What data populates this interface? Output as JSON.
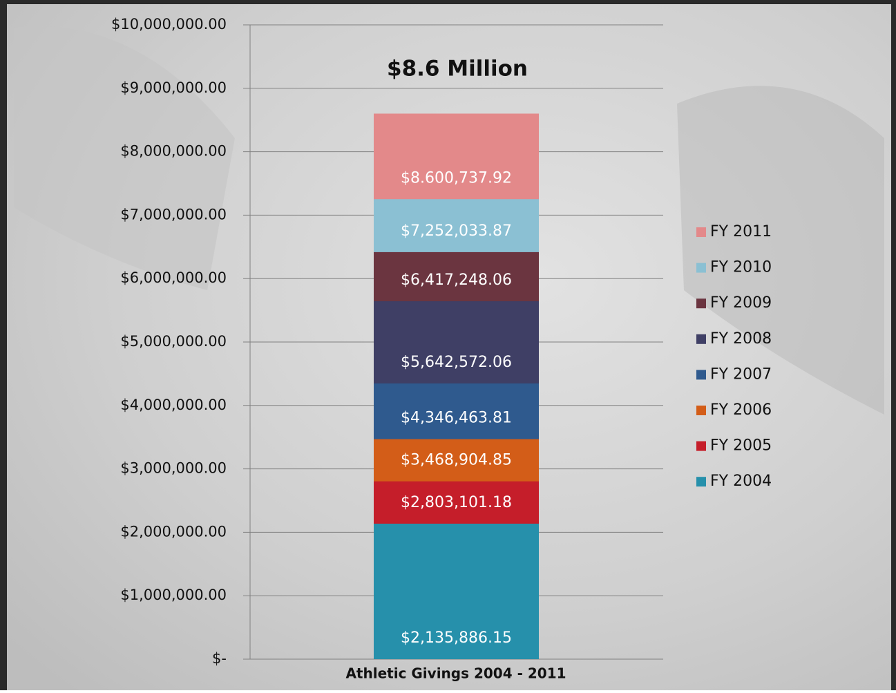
{
  "chart_data": {
    "type": "bar",
    "title": "$8.6 Million",
    "categories": [
      "Athletic Givings 2004 - 2011"
    ],
    "series": [
      {
        "name": "FY 2004",
        "color": "#2690ab",
        "values": [
          2135886.15
        ],
        "value_labels": [
          "$2,135,886.15"
        ]
      },
      {
        "name": "FY 2005",
        "color": "#c51e2a",
        "values": [
          2803101.18
        ],
        "value_labels": [
          "$2,803,101.18"
        ]
      },
      {
        "name": "FY 2006",
        "color": "#d35d18",
        "values": [
          3468904.85
        ],
        "value_labels": [
          "$3,468,904.85"
        ]
      },
      {
        "name": "FY 2007",
        "color": "#2f5a8e",
        "values": [
          4346463.81
        ],
        "value_labels": [
          "$4,346,463.81"
        ]
      },
      {
        "name": "FY 2008",
        "color": "#3f3f65",
        "values": [
          5642572.06
        ],
        "value_labels": [
          "$5,642,572.06"
        ]
      },
      {
        "name": "FY 2009",
        "color": "#6b3540",
        "values": [
          6417248.06
        ],
        "value_labels": [
          "$6,417,248.06"
        ]
      },
      {
        "name": "FY 2010",
        "color": "#8bc0d3",
        "values": [
          7252033.87
        ],
        "value_labels": [
          "$7,252,033.87"
        ]
      },
      {
        "name": "FY 2011",
        "color": "#e3898a",
        "values": [
          8600737.92
        ],
        "value_labels": [
          "$8.600,737.92"
        ]
      }
    ],
    "ylim": [
      0,
      10000000
    ],
    "yticks": [
      {
        "value": 0,
        "label": "$-"
      },
      {
        "value": 1000000,
        "label": "$1,000,000.00"
      },
      {
        "value": 2000000,
        "label": "$2,000,000.00"
      },
      {
        "value": 3000000,
        "label": "$3,000,000.00"
      },
      {
        "value": 4000000,
        "label": "$4,000,000.00"
      },
      {
        "value": 5000000,
        "label": "$5,000,000.00"
      },
      {
        "value": 6000000,
        "label": "$6,000,000.00"
      },
      {
        "value": 7000000,
        "label": "$7,000,000.00"
      },
      {
        "value": 8000000,
        "label": "$8,000,000.00"
      },
      {
        "value": 9000000,
        "label": "$9,000,000.00"
      },
      {
        "value": 10000000,
        "label": "$10,000,000.00"
      }
    ],
    "grid": true,
    "legend": "right"
  }
}
